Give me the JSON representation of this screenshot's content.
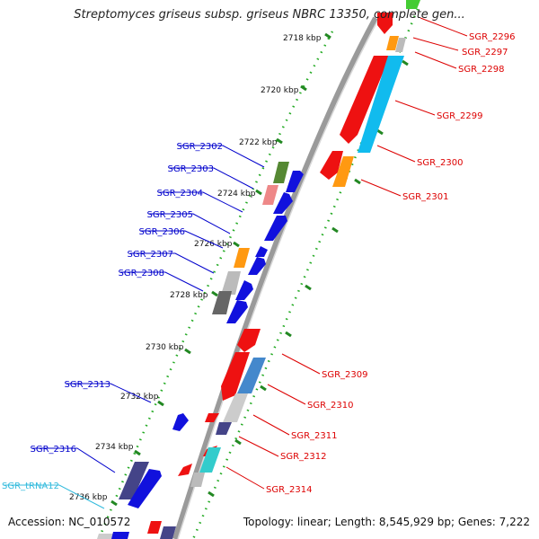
{
  "title": "Streptomyces griseus subsp. griseus NBRC 13350, complete gen...",
  "footer": {
    "accession": "Accession: NC_010572",
    "summary": "Topology: linear; Length: 8,545,929 bp; Genes: 7,222"
  },
  "colors": {
    "forward_label": "#0000cc",
    "reverse_label": "#dd0000",
    "trna_label": "#33bbdd",
    "tick": "#228822",
    "backbone": "#888888"
  },
  "ruler": [
    {
      "label": "2718 kbp"
    },
    {
      "label": "2720 kbp"
    },
    {
      "label": "2722 kbp"
    },
    {
      "label": "2724 kbp"
    },
    {
      "label": "2726 kbp"
    },
    {
      "label": "2728 kbp"
    },
    {
      "label": "2730 kbp"
    },
    {
      "label": "2732 kbp"
    },
    {
      "label": "2734 kbp"
    },
    {
      "label": "2736 kbp"
    }
  ],
  "forward_genes": [
    {
      "label": "SGR_2302"
    },
    {
      "label": "SGR_2303"
    },
    {
      "label": "SGR_2304"
    },
    {
      "label": "SGR_2305"
    },
    {
      "label": "SGR_2306"
    },
    {
      "label": "SGR_2307"
    },
    {
      "label": "SGR_2308"
    },
    {
      "label": "SGR_2313"
    },
    {
      "label": "SGR_2316"
    },
    {
      "label": "SGR_tRNA12"
    }
  ],
  "reverse_genes": [
    {
      "label": "SGR_2296"
    },
    {
      "label": "SGR_2297"
    },
    {
      "label": "SGR_2298"
    },
    {
      "label": "SGR_2299"
    },
    {
      "label": "SGR_2300"
    },
    {
      "label": "SGR_2301"
    },
    {
      "label": "SGR_2309"
    },
    {
      "label": "SGR_2310"
    },
    {
      "label": "SGR_2311"
    },
    {
      "label": "SGR_2312"
    },
    {
      "label": "SGR_2314"
    }
  ]
}
